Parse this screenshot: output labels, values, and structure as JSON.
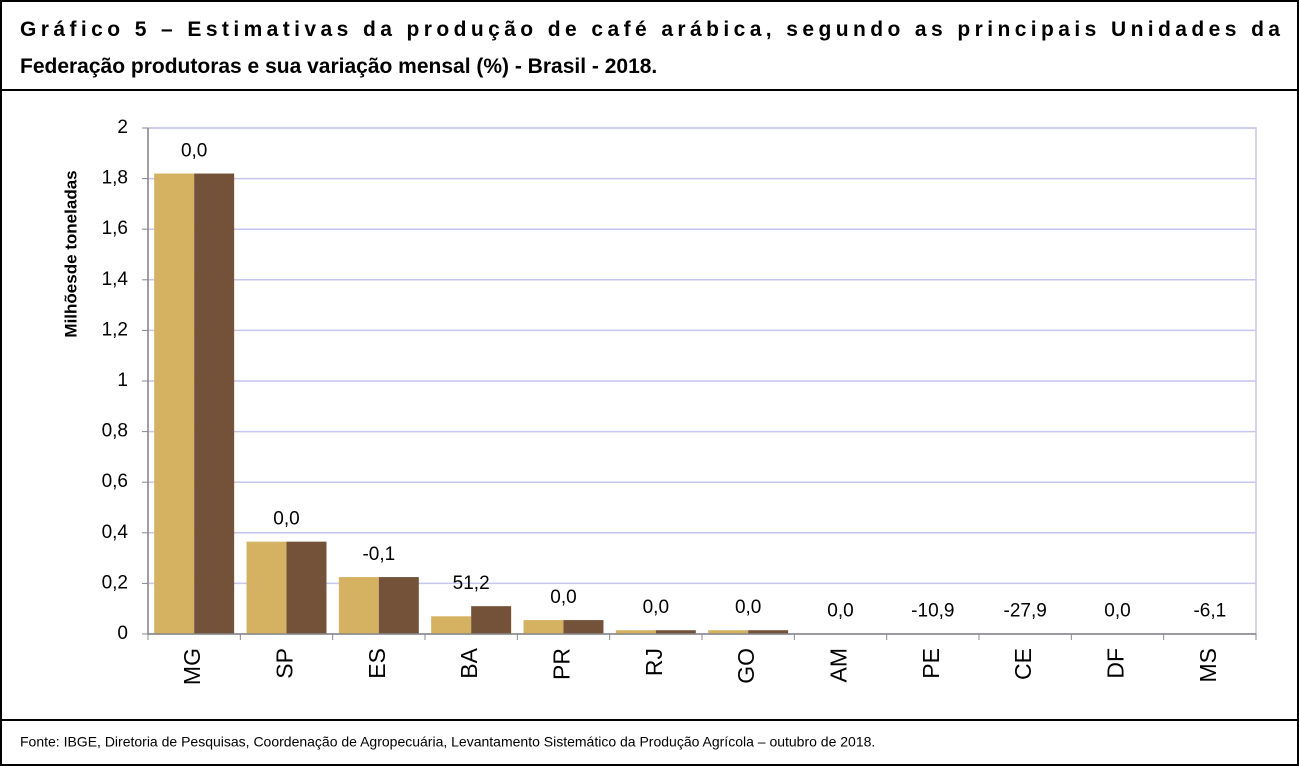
{
  "chart_data": {
    "type": "bar",
    "title_lines": [
      "Gráfico 5 – Estimativas da produção de café arábica, segundo as principais Unidades da",
      "Federação produtoras e sua variação mensal (%) - Brasil - 2018."
    ],
    "ylabel": "Milhõesde toneladas",
    "categories": [
      "MG",
      "SP",
      "ES",
      "BA",
      "PR",
      "RJ",
      "GO",
      "AM",
      "PE",
      "CE",
      "DF",
      "MS"
    ],
    "series": [
      {
        "color": "#d4b262",
        "values": [
          1.82,
          0.365,
          0.225,
          0.07,
          0.055,
          0.015,
          0.015,
          0.002,
          0.002,
          0.002,
          0.002,
          0.002
        ]
      },
      {
        "color": "#735239",
        "values": [
          1.82,
          0.365,
          0.225,
          0.11,
          0.055,
          0.015,
          0.015,
          0.002,
          0.002,
          0.002,
          0.002,
          0.002
        ]
      }
    ],
    "annotations": [
      "0,0",
      "0,0",
      "-0,1",
      "51,2",
      "0,0",
      "0,0",
      "0,0",
      "0,0",
      "-10,9",
      "-27,9",
      "0,0",
      "-6,1"
    ],
    "ylim": [
      0,
      2
    ],
    "yticks": [
      0,
      {
        "value": 0.2,
        "label": "0,2"
      },
      {
        "value": 0.4,
        "label": "0,4"
      },
      {
        "value": 0.6,
        "label": "0,6"
      },
      {
        "value": 0.8,
        "label": "0,8"
      },
      1,
      {
        "value": 1.2,
        "label": "1,2"
      },
      {
        "value": 1.4,
        "label": "1,4"
      },
      {
        "value": 1.6,
        "label": "1,6"
      },
      {
        "value": 1.8,
        "label": "1,8"
      },
      2
    ],
    "grid": true,
    "source": "Fonte: IBGE, Diretoria de Pesquisas, Coordenação de Agropecuária, Levantamento Sistemático da Produção Agrícola – outubro de 2018."
  }
}
